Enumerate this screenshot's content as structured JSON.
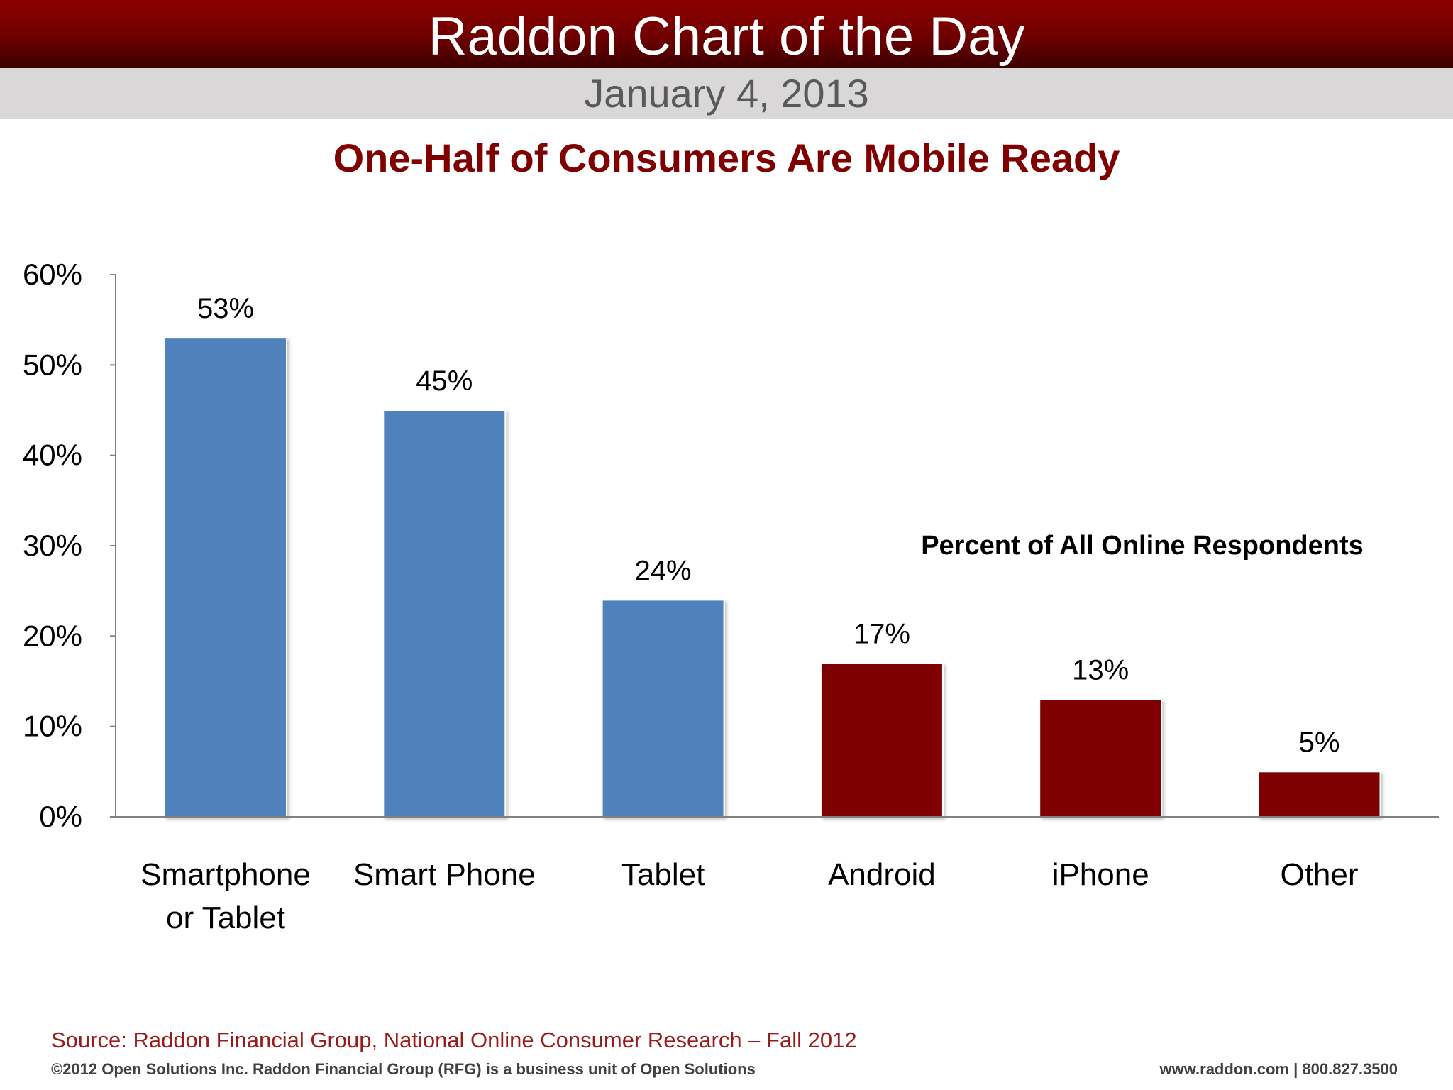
{
  "header": {
    "title": "Raddon Chart of the Day",
    "date": "January 4, 2013"
  },
  "footer": {
    "source": "Source: Raddon Financial Group, National Online Consumer Research – Fall 2012",
    "copyright": "©2012 Open Solutions Inc.  Raddon Financial Group (RFG) is a business unit of Open Solutions",
    "contact": "www.raddon.com  |  800.827.3500"
  },
  "colors": {
    "header_red": "#7f0000",
    "bar_blue": "#4f81bd",
    "bar_red": "#7f0000",
    "date_band": "#d9d7d8"
  },
  "chart_data": {
    "type": "bar",
    "title": "One-Half of Consumers Are Mobile Ready",
    "annotation": "Percent of All Online Respondents",
    "categories": [
      [
        "Smartphone",
        "or Tablet"
      ],
      [
        "Smart Phone"
      ],
      [
        "Tablet"
      ],
      [
        "Android"
      ],
      [
        "iPhone"
      ],
      [
        "Other"
      ]
    ],
    "values": [
      53,
      45,
      24,
      17,
      13,
      5
    ],
    "data_labels": [
      "53%",
      "45%",
      "24%",
      "17%",
      "13%",
      "5%"
    ],
    "bar_colors": [
      "#4f81bd",
      "#4f81bd",
      "#4f81bd",
      "#7f0000",
      "#7f0000",
      "#7f0000"
    ],
    "yticks": [
      "0%",
      "10%",
      "20%",
      "30%",
      "40%",
      "50%",
      "60%"
    ],
    "ylim": [
      0,
      60
    ],
    "grid": false,
    "legend": "none"
  }
}
